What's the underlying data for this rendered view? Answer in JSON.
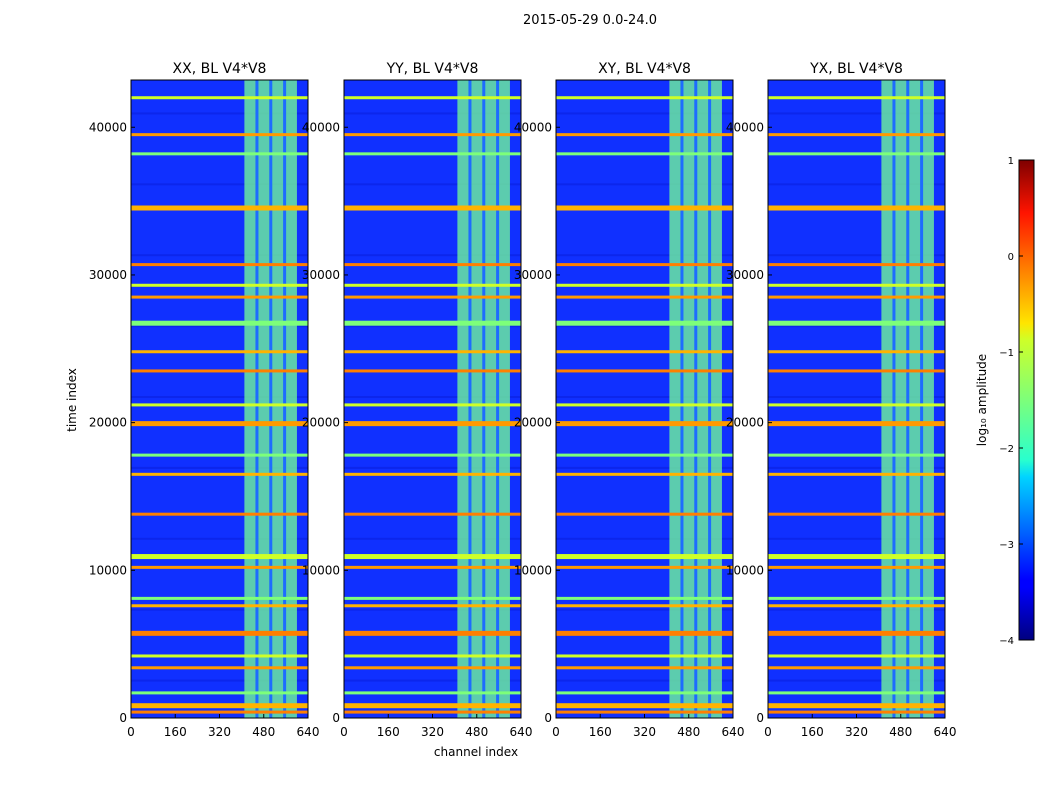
{
  "figure": {
    "suptitle": "2015-05-29 0.0-24.0"
  },
  "chart_data": {
    "type": "heatmap",
    "title": "2015-05-29 0.0-24.0",
    "xlabel": "channel index",
    "ylabel": "time index",
    "xlim": [
      0,
      640
    ],
    "ylim": [
      0,
      43200
    ],
    "x_ticks": [
      "0",
      "160",
      "320",
      "480",
      "640"
    ],
    "y_ticks": [
      "0",
      "10000",
      "20000",
      "30000",
      "40000"
    ],
    "panels": [
      {
        "title": "XX, BL V4*V8",
        "polarization": "XX"
      },
      {
        "title": "YY, BL V4*V8",
        "polarization": "YY"
      },
      {
        "title": "XY, BL V4*V8",
        "polarization": "XY"
      },
      {
        "title": "YX, BL V4*V8",
        "polarization": "YX"
      }
    ],
    "colorbar": {
      "label": "log₁₀ amplitude",
      "range": [
        -4,
        1
      ],
      "ticks": [
        "1",
        "0",
        "−1",
        "−2",
        "−3",
        "−4"
      ],
      "colormap": "jet"
    },
    "features": {
      "bright_channel_band": [
        410,
        600
      ],
      "interference_rows_time_index": [
        400,
        900,
        1700,
        3400,
        4200,
        5800,
        7600,
        8100,
        10200,
        11000,
        13800,
        16500,
        17800,
        20000,
        21200,
        23500,
        24800,
        26800,
        28500,
        29300,
        30700,
        34600,
        38200,
        39500,
        42000
      ]
    }
  }
}
